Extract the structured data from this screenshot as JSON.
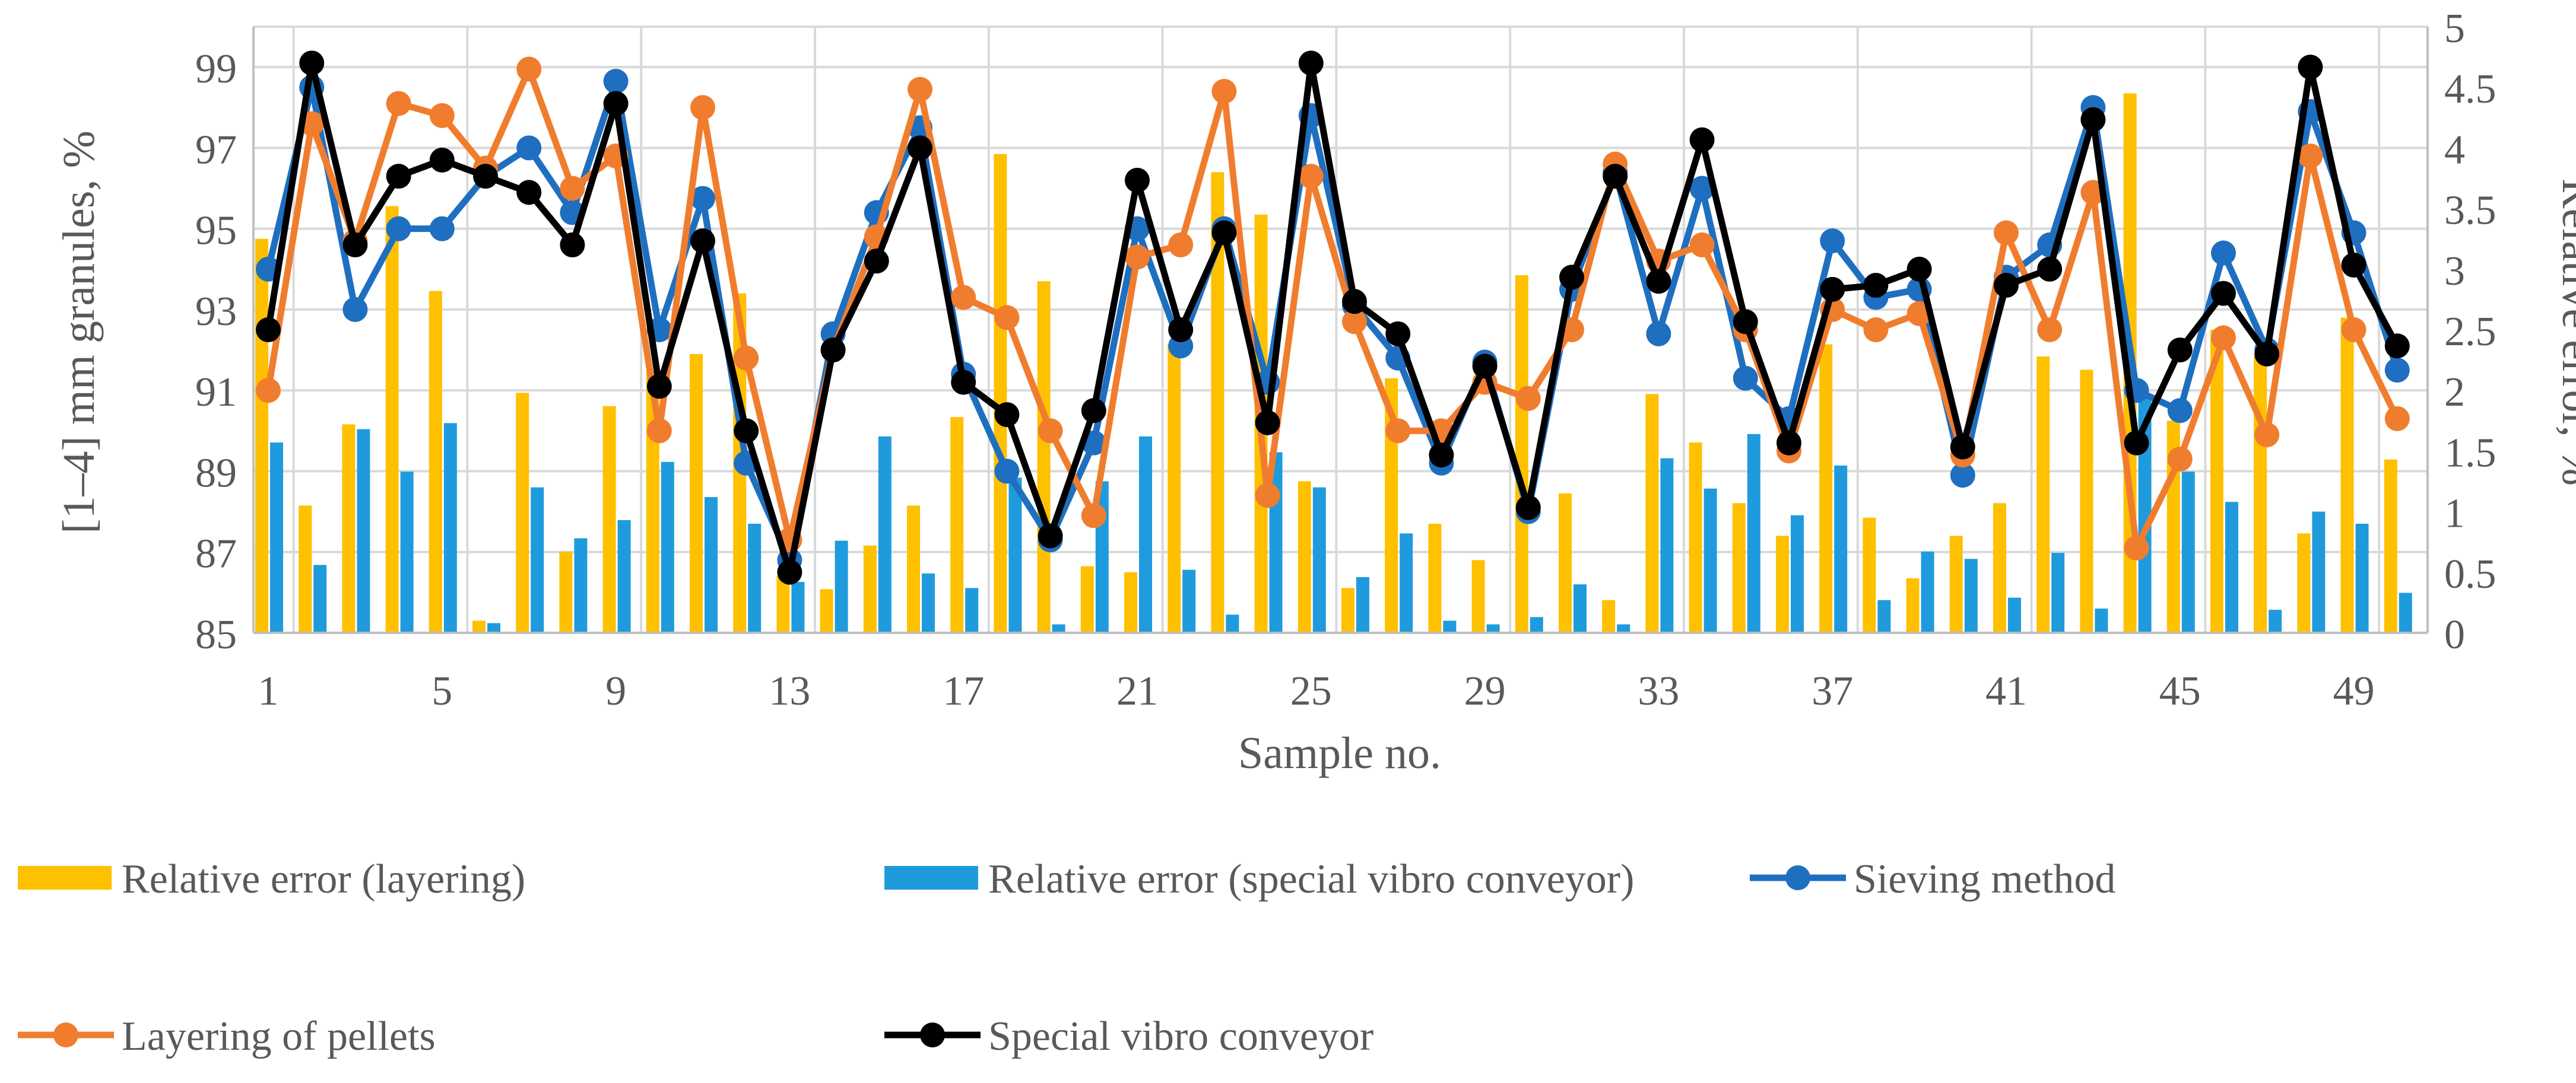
{
  "chart_data": {
    "type": "bar+line",
    "title": "",
    "xlabel": "Sample no.",
    "ylabel": "[1–4] mm granules, %",
    "ylabel_right": "Relative error, %",
    "ylim": [
      85,
      100
    ],
    "yticks": [
      85,
      87,
      89,
      91,
      93,
      95,
      97,
      99
    ],
    "ylim_right": [
      0,
      5
    ],
    "yticks_right": [
      "0",
      "0.5",
      "1",
      "1.5",
      "2",
      "2.5",
      "3",
      "3.5",
      "4",
      "4.5",
      "5"
    ],
    "xticks": [
      1,
      5,
      9,
      13,
      17,
      21,
      25,
      29,
      33,
      37,
      41,
      45,
      49
    ],
    "x": [
      1,
      2,
      3,
      4,
      5,
      6,
      7,
      8,
      9,
      10,
      11,
      12,
      13,
      14,
      15,
      16,
      17,
      18,
      19,
      20,
      21,
      22,
      23,
      24,
      25,
      26,
      27,
      28,
      29,
      30,
      31,
      32,
      33,
      34,
      35,
      36,
      37,
      38,
      39,
      40,
      41,
      42,
      43,
      44,
      45,
      46,
      47,
      48,
      49,
      50
    ],
    "grid": true,
    "legend_position": "bottom",
    "colors": {
      "layering_bar": "#FFC000",
      "vibro_bar": "#1F9BDD",
      "sieving": "#1F6FC0",
      "layering_line": "#F07D2E",
      "vibro_line": "#000000",
      "grid": "#D9D9D9",
      "axis_text": "#595959"
    },
    "bars": [
      {
        "name": "Relative error (layering)",
        "color_key": "layering_bar",
        "values": [
          3.25,
          1.05,
          1.72,
          3.52,
          2.82,
          0.1,
          1.98,
          0.67,
          1.87,
          2.16,
          2.3,
          2.8,
          0.47,
          0.36,
          0.72,
          1.05,
          1.78,
          3.95,
          2.9,
          0.55,
          0.5,
          2.38,
          3.8,
          3.45,
          1.25,
          0.37,
          2.1,
          0.9,
          0.6,
          2.95,
          1.15,
          0.27,
          1.97,
          1.57,
          1.07,
          0.8,
          2.38,
          0.95,
          0.45,
          0.8,
          1.07,
          2.28,
          2.17,
          4.45,
          1.75,
          2.5,
          2.28,
          0.82,
          2.6,
          1.43
        ]
      },
      {
        "name": "Relative error (special vibro conveyor)",
        "color_key": "vibro_bar",
        "values": [
          1.57,
          0.56,
          1.68,
          1.33,
          1.73,
          0.08,
          1.2,
          0.78,
          0.93,
          1.41,
          1.12,
          0.9,
          0.42,
          0.76,
          1.62,
          0.49,
          0.37,
          1.28,
          0.07,
          1.25,
          1.62,
          0.52,
          0.15,
          1.49,
          1.2,
          0.46,
          0.82,
          0.1,
          0.07,
          0.13,
          0.4,
          0.07,
          1.44,
          1.19,
          1.64,
          0.97,
          1.38,
          0.27,
          0.67,
          0.61,
          0.29,
          0.66,
          0.2,
          1.97,
          1.33,
          1.08,
          0.19,
          1.0,
          0.9,
          0.33
        ]
      }
    ],
    "series": [
      {
        "name": "Sieving method",
        "color_key": "sieving",
        "values": [
          94.0,
          98.5,
          93.0,
          95.0,
          95.0,
          96.3,
          97.0,
          95.4,
          98.65,
          92.5,
          95.75,
          89.2,
          86.8,
          92.4,
          95.4,
          97.5,
          91.4,
          89.0,
          87.3,
          89.7,
          95.0,
          92.1,
          95.0,
          91.2,
          97.8,
          93.1,
          91.8,
          89.2,
          91.7,
          88.0,
          93.5,
          96.4,
          92.4,
          96.0,
          91.3,
          90.3,
          94.7,
          93.3,
          93.5,
          88.9,
          93.8,
          94.6,
          98.0,
          91.0,
          90.5,
          94.4,
          92.0,
          97.9,
          94.9,
          91.5
        ]
      },
      {
        "name": "Layering of pellets",
        "color_key": "layering_line",
        "values": [
          91.0,
          97.6,
          94.7,
          98.1,
          97.8,
          96.5,
          98.95,
          96.0,
          96.8,
          90.0,
          98.0,
          91.8,
          87.3,
          92.0,
          94.8,
          98.45,
          93.3,
          92.8,
          90.0,
          87.9,
          94.3,
          94.6,
          98.4,
          88.4,
          96.3,
          92.7,
          90.0,
          90.0,
          91.2,
          90.8,
          92.5,
          96.6,
          94.2,
          94.6,
          92.5,
          89.5,
          93.0,
          92.5,
          92.9,
          89.4,
          94.9,
          92.5,
          95.9,
          87.1,
          89.3,
          92.3,
          89.9,
          96.8,
          92.5,
          90.3
        ]
      },
      {
        "name": "Special vibro conveyor",
        "color_key": "vibro_line",
        "values": [
          92.5,
          99.1,
          94.6,
          96.3,
          96.7,
          96.3,
          95.9,
          94.6,
          98.1,
          91.1,
          94.7,
          90.0,
          86.5,
          92.0,
          94.2,
          97.0,
          91.2,
          90.4,
          87.4,
          90.5,
          96.2,
          92.5,
          94.9,
          90.2,
          99.1,
          93.2,
          92.4,
          89.4,
          91.6,
          88.1,
          93.8,
          96.3,
          93.7,
          97.2,
          92.7,
          89.7,
          93.5,
          93.6,
          94.0,
          89.6,
          93.6,
          94.0,
          97.7,
          89.7,
          92.0,
          93.4,
          91.9,
          99.0,
          94.1,
          92.1
        ]
      }
    ]
  }
}
